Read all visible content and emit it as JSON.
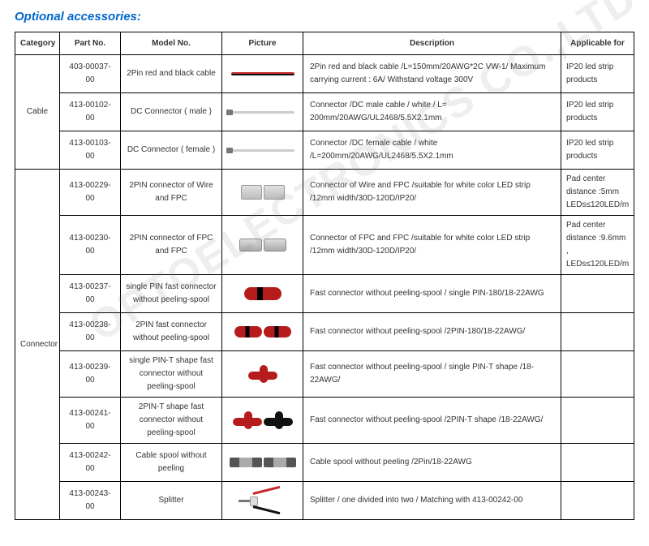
{
  "title": "Optional accessories:",
  "watermark": "OPTOELECTRONICS CO.,LTD",
  "columns": [
    "Category",
    "Part No.",
    "Model No.",
    "Picture",
    "Description",
    "Applicable for"
  ],
  "groups": [
    {
      "category": "Cable",
      "rows": [
        {
          "part": "403-00037-00",
          "model": "2Pin red and black cable",
          "pic": "cable-redblack",
          "desc": "2Pin red and black cable /L=150mm/20AWG*2C VW-1/ Maximum carrying current : 6A/ Withstand voltage 300V",
          "app": "IP20 led strip products"
        },
        {
          "part": "413-00102-00",
          "model": "DC Connector ( male )",
          "pic": "cable-dc",
          "desc": "Connector /DC male cable / white / L= 200mm/20AWG/UL2468/5.5X2.1mm",
          "app": "IP20 led strip products"
        },
        {
          "part": "413-00103-00",
          "model": "DC Connector ( female )",
          "pic": "cable-dc",
          "desc": "Connector /DC female cable / white /L=200mm/20AWG/UL2468/5.5X2.1mm",
          "app": "IP20 led strip products"
        }
      ]
    },
    {
      "category": "Connector",
      "rows": [
        {
          "part": "413-00229-00",
          "model": "2PIN connector of Wire and FPC",
          "pic": "conn-block-pair",
          "desc": "Connector of Wire and FPC /suitable for white color LED strip /12mm width/30D-120D/IP20/",
          "app": "Pad center distance :5mm LEDs≤120LED/m"
        },
        {
          "part": "413-00230-00",
          "model": "2PIN connector of FPC and FPC",
          "pic": "conn-gray-pair",
          "desc": "Connector of FPC and FPC /suitable for white color LED strip /12mm width/30D-120D/IP20/",
          "app": "Pad center distance :9.6mm , LEDs≤120LED/m"
        },
        {
          "part": "413-00237-00",
          "model": "single PIN fast connector without peeling-spool",
          "pic": "conn-red-round",
          "desc": "Fast connector without peeling-spool / single PIN-180/18-22AWG",
          "app": ""
        },
        {
          "part": "413-00238-00",
          "model": "2PIN fast connector without peeling-spool",
          "pic": "conn-red-pair",
          "desc": "Fast connector without peeling-spool /2PIN-180/18-22AWG/",
          "app": ""
        },
        {
          "part": "413-00239-00",
          "model": "single PIN-T shape fast connector without peeling-spool",
          "pic": "conn-t-red",
          "desc": "Fast connector without peeling-spool / single PIN-T shape /18-22AWG/",
          "app": ""
        },
        {
          "part": "413-00241-00",
          "model": "2PIN-T shape fast connector without peeling-spool",
          "pic": "conn-t-pair",
          "desc": "Fast connector without peeling-spool /2PIN-T shape /18-22AWG/",
          "app": ""
        },
        {
          "part": "413-00242-00",
          "model": "Cable spool without peeling",
          "pic": "conn-spool-pair",
          "desc": "Cable spool without peeling /2Pin/18-22AWG",
          "app": ""
        },
        {
          "part": "413-00243-00",
          "model": "Splitter",
          "pic": "splitter",
          "desc": "Splitter / one divided into two / Matching with 413-00242-00",
          "app": ""
        }
      ]
    }
  ]
}
